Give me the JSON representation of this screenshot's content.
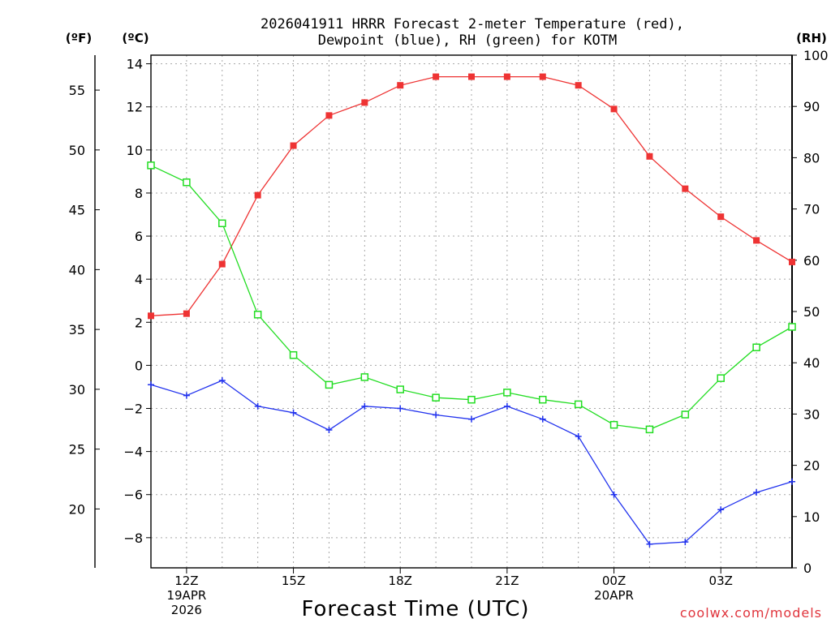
{
  "chart_data": {
    "type": "line",
    "title": [
      "2026041911 HRRR Forecast 2-meter Temperature (red),",
      "Dewpoint (blue), RH (green) for KOTM"
    ],
    "xlabel": "Forecast Time (UTC)",
    "credit": "coolwx.com/models",
    "units": {
      "fahrenheit": "(ºF)",
      "celsius": "(ºC)",
      "rh": "(RH)"
    },
    "x_hours": [
      11,
      12,
      13,
      14,
      15,
      16,
      17,
      18,
      19,
      20,
      21,
      22,
      23,
      24,
      25,
      26,
      27,
      28,
      29
    ],
    "xlim": [
      11,
      29
    ],
    "x_ticks": [
      {
        "hour": 12,
        "lines": [
          "12Z",
          "19APR",
          "2026"
        ]
      },
      {
        "hour": 15,
        "lines": [
          "15Z"
        ]
      },
      {
        "hour": 18,
        "lines": [
          "18Z"
        ]
      },
      {
        "hour": 21,
        "lines": [
          "21Z"
        ]
      },
      {
        "hour": 24,
        "lines": [
          "00Z",
          "20APR"
        ]
      },
      {
        "hour": 27,
        "lines": [
          "03Z"
        ]
      }
    ],
    "celsius_axis": {
      "range": [
        -9.4,
        14.4
      ],
      "ticks": [
        "14",
        "12",
        "10",
        "8",
        "6",
        "4",
        "2",
        "0",
        "−2",
        "−4",
        "−6",
        "−8"
      ]
    },
    "fahrenheit_axis": {
      "range": [
        15.08,
        57.92
      ],
      "ticks": [
        "55",
        "50",
        "45",
        "40",
        "35",
        "30",
        "25",
        "20"
      ]
    },
    "rh_axis": {
      "range": [
        0,
        100
      ],
      "ticks": [
        "100",
        "90",
        "80",
        "70",
        "60",
        "50",
        "40",
        "30",
        "20",
        "10",
        "0"
      ]
    },
    "series": [
      {
        "name": "Temperature",
        "axis": "celsius",
        "color": "#ee3333",
        "marker": "filled-square",
        "values": [
          2.3,
          2.4,
          4.7,
          7.9,
          10.2,
          11.6,
          12.2,
          13.0,
          13.4,
          13.4,
          13.4,
          13.4,
          13.0,
          11.9,
          9.7,
          8.2,
          6.9,
          5.8,
          4.8
        ]
      },
      {
        "name": "Dewpoint",
        "axis": "celsius",
        "color": "#2233ee",
        "marker": "plus",
        "values": [
          -0.9,
          -1.4,
          -0.7,
          -1.9,
          -2.2,
          -3.0,
          -1.9,
          -2.0,
          -2.3,
          -2.5,
          -1.9,
          -2.5,
          -3.3,
          -6.0,
          -8.3,
          -8.2,
          -6.7,
          -5.9,
          -5.4
        ]
      },
      {
        "name": "RH",
        "axis": "rh",
        "color": "#22dd22",
        "marker": "open-square",
        "values": [
          78.5,
          75.2,
          67.2,
          49.4,
          41.5,
          35.7,
          37.2,
          34.8,
          33.2,
          32.8,
          34.2,
          32.8,
          31.9,
          27.9,
          27.0,
          29.9,
          37.0,
          43.0,
          47.0
        ]
      }
    ]
  }
}
